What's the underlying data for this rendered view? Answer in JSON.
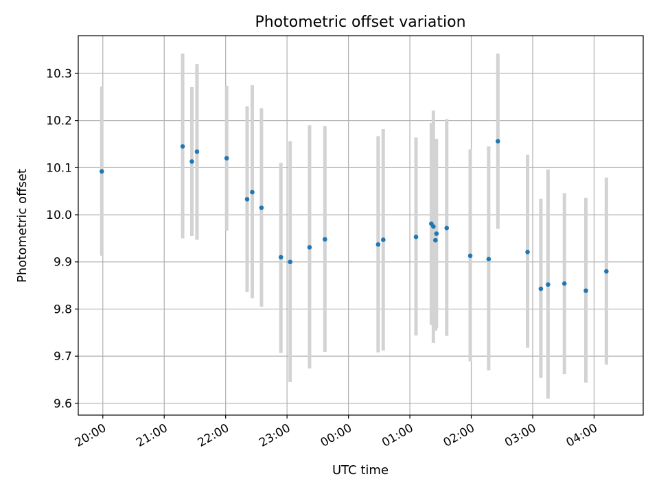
{
  "chart_data": {
    "type": "scatter",
    "title": "Photometric offset variation",
    "xlabel": "UTC time",
    "ylabel": "Photometric offset",
    "x_tick_labels": [
      "20:00",
      "21:00",
      "22:00",
      "23:00",
      "00:00",
      "01:00",
      "02:00",
      "03:00",
      "04:00"
    ],
    "y_tick_labels": [
      "9.6",
      "9.7",
      "9.8",
      "9.9",
      "10.0",
      "10.1",
      "10.2",
      "10.3"
    ],
    "xlim": [
      "19:36",
      "04:48"
    ],
    "ylim": [
      9.575,
      10.38
    ],
    "grid": true,
    "colors": {
      "point": "#1f77b4",
      "errorbar": "#d3d3d3",
      "grid": "#b0b0b0"
    },
    "series": [
      {
        "points": [
          {
            "x": "19:59",
            "y": 10.092,
            "ylo": 9.913,
            "yhi": 10.272
          },
          {
            "x": "21:18",
            "y": 10.145,
            "ylo": 9.95,
            "yhi": 10.342
          },
          {
            "x": "21:27",
            "y": 10.113,
            "ylo": 9.955,
            "yhi": 10.271
          },
          {
            "x": "21:32",
            "y": 10.134,
            "ylo": 9.947,
            "yhi": 10.32
          },
          {
            "x": "22:01",
            "y": 10.12,
            "ylo": 9.966,
            "yhi": 10.274
          },
          {
            "x": "22:21",
            "y": 10.033,
            "ylo": 9.836,
            "yhi": 10.23
          },
          {
            "x": "22:26",
            "y": 10.048,
            "ylo": 9.823,
            "yhi": 10.275
          },
          {
            "x": "22:35",
            "y": 10.015,
            "ylo": 9.805,
            "yhi": 10.226
          },
          {
            "x": "22:54",
            "y": 9.91,
            "ylo": 9.707,
            "yhi": 10.11
          },
          {
            "x": "23:03",
            "y": 9.9,
            "ylo": 9.645,
            "yhi": 10.156
          },
          {
            "x": "23:22",
            "y": 9.931,
            "ylo": 9.674,
            "yhi": 10.19
          },
          {
            "x": "23:37",
            "y": 9.948,
            "ylo": 9.709,
            "yhi": 10.188
          },
          {
            "x": "00:29",
            "y": 9.937,
            "ylo": 9.708,
            "yhi": 10.167
          },
          {
            "x": "00:34",
            "y": 9.947,
            "ylo": 9.712,
            "yhi": 10.182
          },
          {
            "x": "01:06",
            "y": 9.953,
            "ylo": 9.744,
            "yhi": 10.164
          },
          {
            "x": "01:21",
            "y": 9.981,
            "ylo": 9.766,
            "yhi": 10.195
          },
          {
            "x": "01:23",
            "y": 9.975,
            "ylo": 9.728,
            "yhi": 10.221
          },
          {
            "x": "01:25",
            "y": 9.946,
            "ylo": 9.754,
            "yhi": 10.138
          },
          {
            "x": "01:26",
            "y": 9.96,
            "ylo": 9.759,
            "yhi": 10.161
          },
          {
            "x": "01:36",
            "y": 9.972,
            "ylo": 9.743,
            "yhi": 10.203
          },
          {
            "x": "01:59",
            "y": 9.913,
            "ylo": 9.689,
            "yhi": 10.139
          },
          {
            "x": "02:17",
            "y": 9.906,
            "ylo": 9.67,
            "yhi": 10.145
          },
          {
            "x": "02:26",
            "y": 10.156,
            "ylo": 9.97,
            "yhi": 10.342
          },
          {
            "x": "02:55",
            "y": 9.921,
            "ylo": 9.718,
            "yhi": 10.127
          },
          {
            "x": "03:08",
            "y": 9.843,
            "ylo": 9.654,
            "yhi": 10.034
          },
          {
            "x": "03:15",
            "y": 9.852,
            "ylo": 9.61,
            "yhi": 10.096
          },
          {
            "x": "03:31",
            "y": 9.854,
            "ylo": 9.662,
            "yhi": 10.046
          },
          {
            "x": "03:52",
            "y": 9.839,
            "ylo": 9.644,
            "yhi": 10.036
          },
          {
            "x": "04:12",
            "y": 9.88,
            "ylo": 9.682,
            "yhi": 10.079
          }
        ]
      }
    ]
  }
}
